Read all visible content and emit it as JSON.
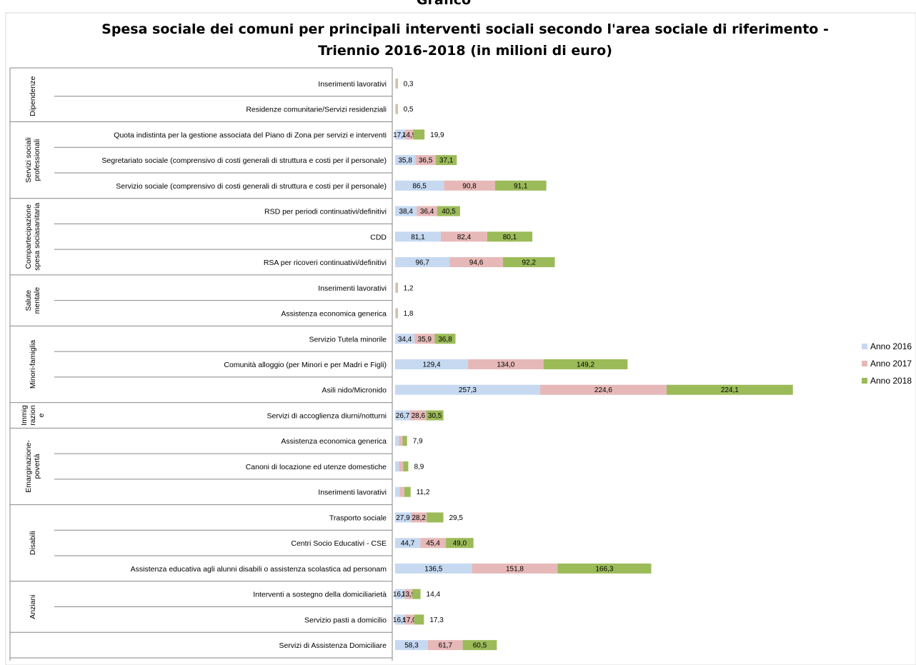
{
  "header": {
    "clipped_title": "Grafico"
  },
  "chart_data": {
    "type": "bar",
    "stacked": true,
    "orientation": "horizontal",
    "title_line1": "Spesa sociale dei comuni per principali interventi sociali secondo l'area sociale di riferimento -",
    "title_line2": "Triennio 2016-2018 (in milioni di euro)",
    "legend_position": "right",
    "series": [
      {
        "name": "Anno 2016",
        "color": "#c6d9f1"
      },
      {
        "name": "Anno 2017",
        "color": "#e6b9b8"
      },
      {
        "name": "Anno 2018",
        "color": "#9bbb59"
      }
    ],
    "groups": [
      {
        "label_lines": [
          "Dipendenze"
        ],
        "rows": [
          {
            "label": "Inserimenti lavorativi",
            "values": [
              0.1,
              0.1,
              0.1
            ],
            "labels": [
              "",
              "",
              "0,3"
            ]
          },
          {
            "label": "Residenze comunitarie/Servizi residenziali",
            "values": [
              0.2,
              0.2,
              0.1
            ],
            "labels": [
              "",
              "",
              "0,5"
            ]
          }
        ]
      },
      {
        "label_lines": [
          "Servizi sociali",
          "professionali"
        ],
        "rows": [
          {
            "label": "Quota indistinta per la gestione associata del Piano di Zona per servizi e interventi",
            "values": [
              17.4,
              14.9,
              19.9
            ],
            "labels": [
              "17,4",
              "14,9",
              "19,9"
            ]
          },
          {
            "label": "Segretariato sociale (comprensivo di costi generali  di struttura e costi per il personale)",
            "values": [
              35.8,
              36.5,
              37.1
            ],
            "labels": [
              "35,8",
              "36,5",
              "37,1"
            ]
          },
          {
            "label": "Servizio sociale (comprensivo di costi generali di struttura e costi per il personale)",
            "values": [
              86.5,
              90.8,
              91.1
            ],
            "labels": [
              "86,5",
              "90,8",
              "91,1"
            ]
          }
        ]
      },
      {
        "label_lines": [
          "Compartecipazione",
          "spesa sociasanitaria"
        ],
        "rows": [
          {
            "label": "RSD per periodi continuativi/definitivi",
            "values": [
              38.4,
              36.4,
              40.5
            ],
            "labels": [
              "38,4",
              "36,4",
              "40,5"
            ]
          },
          {
            "label": "CDD",
            "values": [
              81.1,
              82.4,
              80.1
            ],
            "labels": [
              "81,1",
              "82,4",
              "80,1"
            ]
          },
          {
            "label": "RSA per ricoveri continuativi/definitivi",
            "values": [
              96.7,
              94.6,
              92.2
            ],
            "labels": [
              "96,7",
              "94,6",
              "92,2"
            ]
          }
        ]
      },
      {
        "label_lines": [
          "Salute",
          "mentale"
        ],
        "rows": [
          {
            "label": "Inserimenti lavorativi",
            "values": [
              0.4,
              0.4,
              0.4
            ],
            "labels": [
              "",
              "",
              "1,2"
            ]
          },
          {
            "label": "Assistenza economica generica",
            "values": [
              0.6,
              0.6,
              0.6
            ],
            "labels": [
              "",
              "",
              "1,8"
            ]
          }
        ]
      },
      {
        "label_lines": [
          "Minori-famiglia"
        ],
        "rows": [
          {
            "label": "Servizio Tutela minorile",
            "values": [
              34.4,
              35.9,
              36.8
            ],
            "labels": [
              "34,4",
              "35,9",
              "36,8"
            ]
          },
          {
            "label": "Comunità alloggio (per Minori e per Madri e Figli)",
            "values": [
              129.4,
              134.0,
              149.2
            ],
            "labels": [
              "129,4",
              "134,0",
              "149,2"
            ]
          },
          {
            "label": "Asili nido/Micronido",
            "values": [
              257.3,
              224.6,
              224.1
            ],
            "labels": [
              "257,3",
              "224,6",
              "224,1"
            ]
          }
        ]
      },
      {
        "label_lines": [
          "Immig",
          "razion",
          "e"
        ],
        "rows": [
          {
            "label": "Servizi di accoglienza diurni/notturni",
            "values": [
              26.7,
              28.6,
              30.5
            ],
            "labels": [
              "26,7",
              "28,6",
              "30,5"
            ]
          }
        ]
      },
      {
        "label_lines": [
          "Emarginazione-",
          "povertà"
        ],
        "rows": [
          {
            "label": "Assistenza economica generica",
            "values": [
              6.5,
              6.8,
              7.9
            ],
            "labels": [
              "",
              "",
              "7,9"
            ]
          },
          {
            "label": "Canoni di locazione ed utenze domestiche",
            "values": [
              7.0,
              7.5,
              8.9
            ],
            "labels": [
              "",
              "",
              "8,9"
            ]
          },
          {
            "label": "Inserimenti lavorativi",
            "values": [
              8.0,
              8.3,
              11.2
            ],
            "labels": [
              "",
              "",
              "11,2"
            ]
          }
        ]
      },
      {
        "label_lines": [
          "Disabili"
        ],
        "rows": [
          {
            "label": "Trasporto sociale",
            "values": [
              27.9,
              28.2,
              29.5
            ],
            "labels": [
              "27,9",
              "28,2",
              "29,5"
            ]
          },
          {
            "label": "Centri Socio Educativi - CSE",
            "values": [
              44.7,
              45.4,
              49.0
            ],
            "labels": [
              "44,7",
              "45,4",
              "49,0"
            ]
          },
          {
            "label": "Assistenza educativa agli alunni disabili o assistenza scolastica ad personam",
            "values": [
              136.5,
              151.8,
              166.3
            ],
            "labels": [
              "136,5",
              "151,8",
              "166,3"
            ]
          }
        ]
      },
      {
        "label_lines": [
          "Anziani"
        ],
        "rows": [
          {
            "label": "Interventi a sostegno della domiciliarietà",
            "values": [
              16.8,
              13.9,
              14.4
            ],
            "labels": [
              "16,8",
              "13,9",
              "14,4"
            ]
          },
          {
            "label": "Servizio pasti a domicilio",
            "values": [
              16.9,
              17.0,
              17.3
            ],
            "labels": [
              "16,9",
              "17,0",
              "17,3"
            ]
          }
        ]
      },
      {
        "label_lines": [],
        "rows": [
          {
            "label": "Servizi di Assistenza Domiciliare",
            "values": [
              58.3,
              61.7,
              60.5
            ],
            "labels": [
              "58,3",
              "61,7",
              "60,5"
            ]
          }
        ]
      }
    ]
  }
}
